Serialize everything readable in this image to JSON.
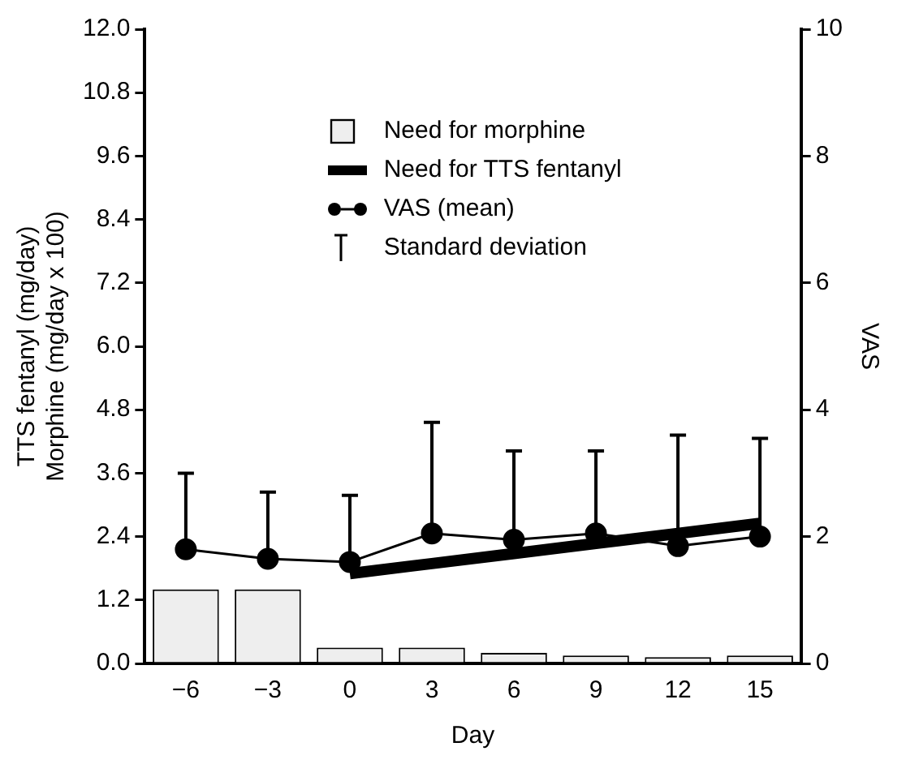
{
  "chart_data": {
    "type": "bar",
    "xlabel": "Day",
    "ylabel": "TTS fentanyl (mg/day)\nMorphine (mg/day x 100)",
    "y2label": "VAS",
    "categories": [
      "−6",
      "−3",
      "0",
      "3",
      "6",
      "9",
      "12",
      "15"
    ],
    "series": [
      {
        "name": "Need for morphine",
        "color": "#eeeeee",
        "values": [
          1.4,
          1.4,
          0.3,
          0.3,
          0.2,
          0.15,
          0.12,
          0.15
        ]
      },
      {
        "name": "Need for TTS fentanyl",
        "type": "line",
        "color": "#000000",
        "marker": "none",
        "values": [
          null,
          null,
          1.7,
          1.89,
          2.08,
          2.27,
          2.46,
          2.65
        ]
      },
      {
        "name": "VAS (mean)",
        "type": "line",
        "axis": "y2",
        "color": "#000000",
        "marker": "circle",
        "values": [
          1.8,
          1.65,
          1.6,
          2.05,
          1.95,
          2.05,
          1.85,
          2.0
        ],
        "errors": [
          [
            1.8,
            3.0
          ],
          [
            1.65,
            2.7
          ],
          [
            1.6,
            2.65
          ],
          [
            2.05,
            3.8
          ],
          [
            1.95,
            3.35
          ],
          [
            2.05,
            3.35
          ],
          [
            1.85,
            3.6
          ],
          [
            2.0,
            3.55
          ]
        ]
      }
    ],
    "ylim": [
      0,
      12
    ],
    "yticks": [
      {
        "value": 0,
        "label": "0.0"
      },
      1.2,
      2.4,
      3.6,
      4.8,
      {
        "value": 6,
        "label": "6.0"
      },
      7.2,
      8.4,
      9.6,
      10.8,
      {
        "value": 12,
        "label": "12.0"
      }
    ],
    "y2lim": [
      0,
      10
    ],
    "y2ticks": [
      0,
      2,
      4,
      6,
      8,
      10
    ],
    "annotations": [
      "Standard deviation"
    ],
    "legend": "top",
    "grid": false
  }
}
